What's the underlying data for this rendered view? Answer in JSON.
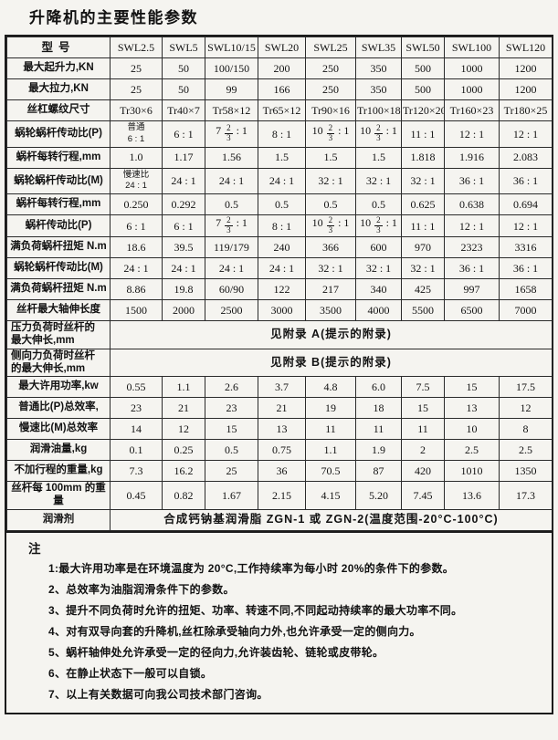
{
  "page_title": "升降机的主要性能参数",
  "table": {
    "header": [
      "型号",
      "SWL2.5",
      "SWL5",
      "SWL10/15",
      "SWL20",
      "SWL25",
      "SWL35",
      "SWL50",
      "SWL100",
      "SWL120"
    ],
    "rows": [
      {
        "label": "最大起升力,KN",
        "values": [
          "25",
          "50",
          "100/150",
          "200",
          "250",
          "350",
          "500",
          "1000",
          "1200"
        ]
      },
      {
        "label": "最大拉力,KN",
        "values": [
          "25",
          "50",
          "99",
          "166",
          "250",
          "350",
          "500",
          "1000",
          "1200"
        ]
      },
      {
        "label": "丝杠螺纹尺寸",
        "values": [
          "Tr30×6",
          "Tr40×7",
          "Tr58×12",
          "Tr65×12",
          "Tr90×16",
          "Tr100×18",
          "Tr120×20",
          "Tr160×23",
          "Tr180×25"
        ]
      },
      {
        "label": "蜗轮蜗杆传动比(P)",
        "values": [
          "普通\n6 : 1",
          "6 : 1",
          "7 2/3 : 1",
          "8 : 1",
          "10 2/3 : 1",
          "10 2/3 : 1",
          "11 : 1",
          "12 : 1",
          "12 : 1"
        ]
      },
      {
        "label": "蜗杆每转行程,mm",
        "values": [
          "1.0",
          "1.17",
          "1.56",
          "1.5",
          "1.5",
          "1.5",
          "1.818",
          "1.916",
          "2.083"
        ]
      },
      {
        "label": "蜗轮蜗杆传动比(M)",
        "values": [
          "慢速比\n24 : 1",
          "24 : 1",
          "24 : 1",
          "24 : 1",
          "32 : 1",
          "32 : 1",
          "32 : 1",
          "36 : 1",
          "36 : 1"
        ]
      },
      {
        "label": "蜗杆每转行程,mm",
        "values": [
          "0.250",
          "0.292",
          "0.5",
          "0.5",
          "0.5",
          "0.5",
          "0.625",
          "0.638",
          "0.694"
        ]
      },
      {
        "label": "蜗杆传动比(P)",
        "values": [
          "6 : 1",
          "6 : 1",
          "7 2/3 : 1",
          "8 : 1",
          "10 2/3 : 1",
          "10 2/3 : 1",
          "11 : 1",
          "12 : 1",
          "12 : 1"
        ]
      },
      {
        "label": "满负荷蜗杆扭矩 N.m",
        "values": [
          "18.6",
          "39.5",
          "119/179",
          "240",
          "366",
          "600",
          "970",
          "2323",
          "3316"
        ]
      },
      {
        "label": "蜗轮蜗杆传动比(M)",
        "values": [
          "24 : 1",
          "24 : 1",
          "24 : 1",
          "24 : 1",
          "32 : 1",
          "32 : 1",
          "32 : 1",
          "36 : 1",
          "36 : 1"
        ]
      },
      {
        "label": "满负荷蜗杆扭矩 N.m",
        "values": [
          "8.86",
          "19.8",
          "60/90",
          "122",
          "217",
          "340",
          "425",
          "997",
          "1658"
        ]
      },
      {
        "label": "丝杆最大轴伸长度",
        "values": [
          "1500",
          "2000",
          "2500",
          "3000",
          "3500",
          "4000",
          "5500",
          "6500",
          "7000"
        ]
      },
      {
        "label": "压力负荷时丝杆的\n最大伸长,mm",
        "span": "见附录 A(提示的附录)"
      },
      {
        "label": "侧向力负荷时丝杆\n的最大伸长,mm",
        "span": "见附录 B(提示的附录)"
      },
      {
        "label": "最大许用功率,kw",
        "values": [
          "0.55",
          "1.1",
          "2.6",
          "3.7",
          "4.8",
          "6.0",
          "7.5",
          "15",
          "17.5"
        ]
      },
      {
        "label": "普通比(P)总效率,",
        "values": [
          "23",
          "21",
          "23",
          "21",
          "19",
          "18",
          "15",
          "13",
          "12"
        ]
      },
      {
        "label": "慢速比(M)总效率",
        "values": [
          "14",
          "12",
          "15",
          "13",
          "11",
          "11",
          "11",
          "10",
          "8"
        ]
      },
      {
        "label": "润滑油量,kg",
        "values": [
          "0.1",
          "0.25",
          "0.5",
          "0.75",
          "1.1",
          "1.9",
          "2",
          "2.5",
          "2.5"
        ]
      },
      {
        "label": "不加行程的重量,kg",
        "values": [
          "7.3",
          "16.2",
          "25",
          "36",
          "70.5",
          "87",
          "420",
          "1010",
          "1350"
        ]
      },
      {
        "label": "丝杆每 100mm 的重量",
        "values": [
          "0.45",
          "0.82",
          "1.67",
          "2.15",
          "4.15",
          "5.20",
          "7.45",
          "13.6",
          "17.3"
        ]
      },
      {
        "label": "润滑剂",
        "span": "合成钙钠基润滑脂 ZGN-1 或 ZGN-2(温度范围-20°C-100°C)"
      }
    ]
  },
  "notes": {
    "title": "注",
    "items": [
      "1:最大许用功率是在环境温度为 20°C,工作持续率为每小时 20%的条件下的参数。",
      "2、总效率为油脂润滑条件下的参数。",
      "3、提升不同负荷时允许的扭矩、功率、转速不同,不同起动持续率的最大功率不同。",
      "4、对有双导向套的升降机,丝杠除承受轴向力外,也允许承受一定的侧向力。",
      "5、蜗杆轴伸处允许承受一定的径向力,允许装齿轮、链轮或皮带轮。",
      "6、在静止状态下一般可以自锁。",
      "7、以上有关数据可向我公司技术部门咨询。"
    ]
  }
}
